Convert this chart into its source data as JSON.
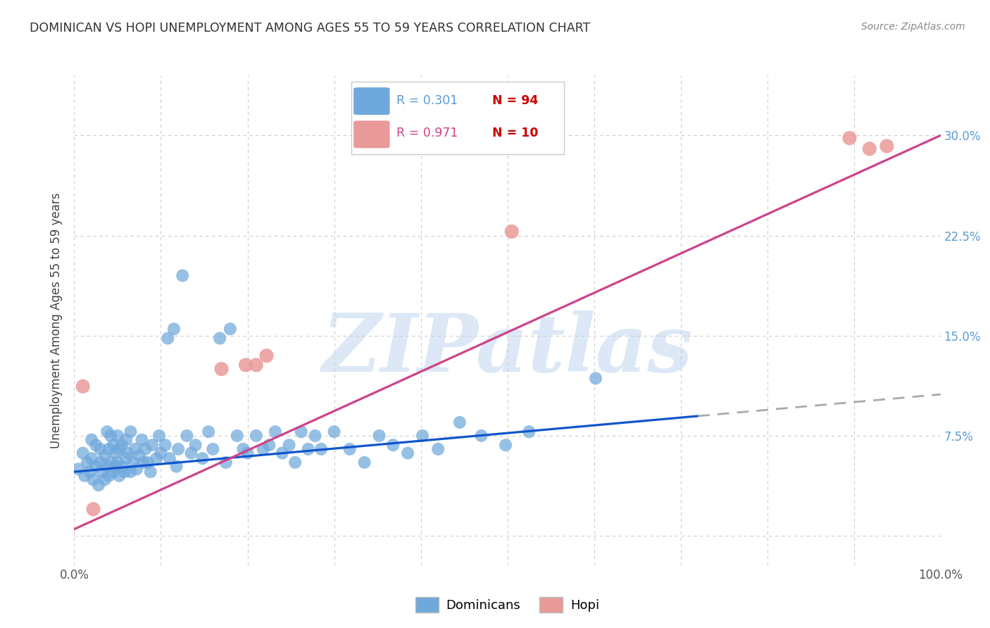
{
  "title": "DOMINICAN VS HOPI UNEMPLOYMENT AMONG AGES 55 TO 59 YEARS CORRELATION CHART",
  "source": "Source: ZipAtlas.com",
  "ylabel": "Unemployment Among Ages 55 to 59 years",
  "xlim": [
    0.0,
    1.0
  ],
  "ylim": [
    -0.022,
    0.345
  ],
  "xticks": [
    0.0,
    0.1,
    0.2,
    0.3,
    0.4,
    0.5,
    0.6,
    0.7,
    0.8,
    0.9,
    1.0
  ],
  "xticklabels": [
    "0.0%",
    "",
    "",
    "",
    "",
    "",
    "",
    "",
    "",
    "",
    "100.0%"
  ],
  "yticks_right": [
    0.0,
    0.075,
    0.15,
    0.225,
    0.3
  ],
  "yticklabels_right": [
    "",
    "7.5%",
    "15.0%",
    "22.5%",
    "30.0%"
  ],
  "dominican_color": "#6fa8dc",
  "hopi_color": "#ea9999",
  "trendline_dominican_color": "#1155cc",
  "trendline_hopi_color": "#cc4488",
  "dashed_color": "#aaaaaa",
  "legend_dominican_r": "R = 0.301",
  "legend_dominican_n": "N = 94",
  "legend_hopi_r": "R = 0.971",
  "legend_hopi_n": "N = 10",
  "watermark": "ZIPatlas",
  "watermark_color": "#dce8f5",
  "dom_trend_slope": 0.058,
  "dom_trend_intercept": 0.048,
  "dom_trend_solid_end": 0.72,
  "hopi_trend_slope": 0.295,
  "hopi_trend_intercept": 0.005,
  "dominican_x": [
    0.005,
    0.01,
    0.012,
    0.015,
    0.018,
    0.02,
    0.02,
    0.022,
    0.025,
    0.025,
    0.028,
    0.03,
    0.03,
    0.032,
    0.035,
    0.035,
    0.038,
    0.038,
    0.04,
    0.04,
    0.042,
    0.042,
    0.045,
    0.045,
    0.048,
    0.048,
    0.05,
    0.05,
    0.052,
    0.052,
    0.055,
    0.055,
    0.058,
    0.06,
    0.06,
    0.062,
    0.065,
    0.065,
    0.068,
    0.07,
    0.072,
    0.075,
    0.078,
    0.08,
    0.082,
    0.085,
    0.088,
    0.09,
    0.095,
    0.098,
    0.1,
    0.105,
    0.108,
    0.11,
    0.115,
    0.118,
    0.12,
    0.125,
    0.13,
    0.135,
    0.14,
    0.148,
    0.155,
    0.16,
    0.168,
    0.175,
    0.18,
    0.188,
    0.195,
    0.2,
    0.21,
    0.218,
    0.225,
    0.232,
    0.24,
    0.248,
    0.255,
    0.262,
    0.27,
    0.278,
    0.285,
    0.3,
    0.318,
    0.335,
    0.352,
    0.368,
    0.385,
    0.402,
    0.42,
    0.445,
    0.47,
    0.498,
    0.525,
    0.602
  ],
  "dominican_y": [
    0.05,
    0.062,
    0.045,
    0.055,
    0.048,
    0.058,
    0.072,
    0.042,
    0.052,
    0.068,
    0.038,
    0.055,
    0.065,
    0.048,
    0.042,
    0.06,
    0.052,
    0.078,
    0.045,
    0.065,
    0.055,
    0.075,
    0.048,
    0.068,
    0.052,
    0.062,
    0.055,
    0.075,
    0.045,
    0.065,
    0.052,
    0.068,
    0.048,
    0.058,
    0.072,
    0.062,
    0.048,
    0.078,
    0.055,
    0.065,
    0.05,
    0.06,
    0.072,
    0.055,
    0.065,
    0.055,
    0.048,
    0.068,
    0.058,
    0.075,
    0.062,
    0.068,
    0.148,
    0.058,
    0.155,
    0.052,
    0.065,
    0.195,
    0.075,
    0.062,
    0.068,
    0.058,
    0.078,
    0.065,
    0.148,
    0.055,
    0.155,
    0.075,
    0.065,
    0.062,
    0.075,
    0.065,
    0.068,
    0.078,
    0.062,
    0.068,
    0.055,
    0.078,
    0.065,
    0.075,
    0.065,
    0.078,
    0.065,
    0.055,
    0.075,
    0.068,
    0.062,
    0.075,
    0.065,
    0.085,
    0.075,
    0.068,
    0.078,
    0.118
  ],
  "hopi_x": [
    0.01,
    0.022,
    0.17,
    0.198,
    0.21,
    0.222,
    0.505,
    0.895,
    0.918,
    0.938
  ],
  "hopi_y": [
    0.112,
    0.02,
    0.125,
    0.128,
    0.128,
    0.135,
    0.228,
    0.298,
    0.29,
    0.292
  ],
  "background_color": "#ffffff"
}
